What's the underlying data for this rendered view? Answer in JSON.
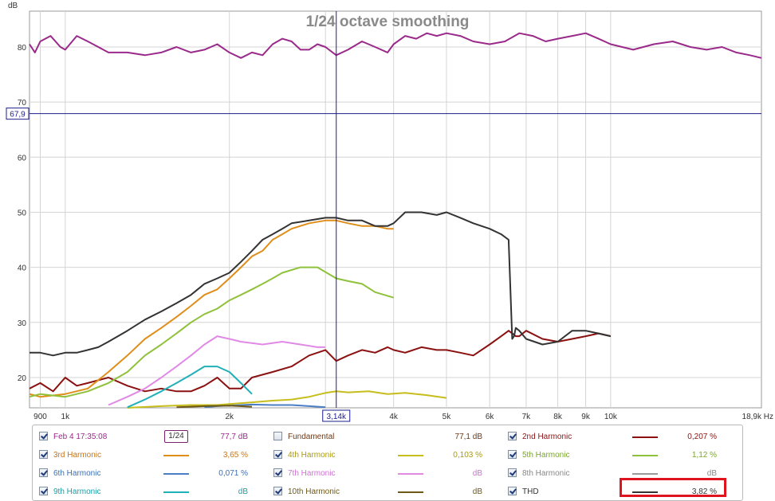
{
  "chart_data": {
    "type": "line",
    "title": "1/24 octave smoothing",
    "ylabel": "dB",
    "xunit": "Hz",
    "xscale": "log",
    "xlim": [
      860,
      18900
    ],
    "ylim": [
      14.5,
      86.5
    ],
    "yticks": [
      20,
      30,
      40,
      50,
      60,
      70,
      80
    ],
    "xticks": [
      {
        "v": 900,
        "label": "900"
      },
      {
        "v": 1000,
        "label": "1k"
      },
      {
        "v": 2000,
        "label": "2k"
      },
      {
        "v": 4000,
        "label": "4k"
      },
      {
        "v": 5000,
        "label": "5k"
      },
      {
        "v": 6000,
        "label": "6k"
      },
      {
        "v": 7000,
        "label": "7k"
      },
      {
        "v": 8000,
        "label": "8k"
      },
      {
        "v": 9000,
        "label": "9k"
      },
      {
        "v": 10000,
        "label": "10k"
      },
      {
        "v": 18900,
        "label": "18,9k Hz"
      }
    ],
    "cursor": {
      "x_label": "3,14k",
      "x": 3140,
      "y_label": "67,9",
      "y": 67.9
    },
    "grid": true,
    "series": [
      {
        "name": "Feb 4 17:35:08",
        "color": "#9a2a8a",
        "x": [
          860,
          880,
          900,
          940,
          980,
          1000,
          1050,
          1100,
          1150,
          1200,
          1300,
          1400,
          1500,
          1600,
          1700,
          1800,
          1900,
          2000,
          2100,
          2200,
          2300,
          2400,
          2500,
          2600,
          2700,
          2800,
          2900,
          3000,
          3140,
          3300,
          3500,
          3700,
          3900,
          4000,
          4200,
          4400,
          4600,
          4800,
          5000,
          5300,
          5600,
          6000,
          6400,
          6800,
          7200,
          7600,
          8000,
          8500,
          9000,
          9500,
          10000,
          11000,
          12000,
          13000,
          14000,
          15000,
          16000,
          17000,
          18000,
          18900
        ],
        "y": [
          80.5,
          79,
          81,
          82,
          80,
          79.5,
          82,
          81,
          80,
          79,
          79,
          78.5,
          79,
          80,
          79,
          79.5,
          80.5,
          79,
          78,
          79,
          78.5,
          80.5,
          81.5,
          81,
          79.5,
          79.5,
          80.5,
          80,
          78.5,
          79.5,
          81,
          80,
          79,
          80.5,
          82,
          81.5,
          82.5,
          82,
          82.5,
          82,
          81,
          80.5,
          81,
          82.5,
          82,
          81,
          81.5,
          82,
          82.5,
          81.5,
          80.5,
          79.5,
          80.5,
          81,
          80,
          79.5,
          80,
          79,
          78.5,
          78
        ]
      },
      {
        "name": "2nd Harmonic",
        "color": "#8b1111",
        "x": [
          860,
          900,
          950,
          1000,
          1050,
          1100,
          1200,
          1300,
          1400,
          1500,
          1600,
          1700,
          1800,
          1900,
          2000,
          2100,
          2200,
          2400,
          2600,
          2800,
          3000,
          3140,
          3300,
          3500,
          3700,
          3900,
          4000,
          4200,
          4500,
          4800,
          5000,
          5300,
          5600,
          6000,
          6300,
          6500,
          6700,
          6800,
          7000,
          7500,
          8000,
          8500,
          9000,
          9500,
          10000
        ],
        "y": [
          18,
          19,
          17.5,
          20,
          18.5,
          19,
          20,
          18.5,
          17.5,
          18,
          17.5,
          17.5,
          18.5,
          20,
          18,
          18,
          20,
          21,
          22,
          24,
          25,
          23,
          24,
          25,
          24.5,
          25.5,
          25,
          24.5,
          25.5,
          25,
          25,
          24.5,
          24,
          26,
          27.5,
          28.5,
          27.5,
          27.5,
          28.5,
          27,
          26.5,
          27,
          27.5,
          28,
          27.5
        ]
      },
      {
        "name": "3rd Harmonic",
        "color": "#e08e1a",
        "x": [
          860,
          900,
          1000,
          1100,
          1200,
          1300,
          1400,
          1500,
          1600,
          1700,
          1800,
          1900,
          2000,
          2100,
          2200,
          2300,
          2400,
          2500,
          2600,
          2800,
          3000,
          3140,
          3300,
          3500,
          3700,
          3900,
          4000
        ],
        "y": [
          17,
          16.5,
          17,
          18,
          21,
          24,
          27,
          29,
          31,
          33,
          35,
          36,
          38,
          40,
          42,
          43,
          45,
          46,
          47,
          48,
          48.5,
          48.5,
          48,
          47.5,
          47.5,
          47,
          47
        ]
      },
      {
        "name": "4th Harmonic",
        "color": "#c7bd1b",
        "x": [
          1300,
          1500,
          1700,
          1900,
          2000,
          2200,
          2400,
          2600,
          2800,
          3000,
          3140,
          3300,
          3600,
          3900,
          4200,
          4600,
          5000
        ],
        "y": [
          14.5,
          14.8,
          15,
          15,
          15.2,
          15.5,
          15.8,
          16,
          16.5,
          17.2,
          17.5,
          17.3,
          17.5,
          17,
          17.2,
          16.8,
          16.3
        ]
      },
      {
        "name": "5th Harmonic",
        "color": "#8fc13a",
        "x": [
          860,
          900,
          1000,
          1100,
          1200,
          1300,
          1400,
          1500,
          1600,
          1700,
          1800,
          1900,
          2000,
          2100,
          2200,
          2300,
          2400,
          2500,
          2700,
          2900,
          3140,
          3300,
          3500,
          3700,
          4000
        ],
        "y": [
          16.5,
          17,
          16.5,
          17.5,
          19,
          21,
          24,
          26,
          28,
          30,
          31.5,
          32.5,
          34,
          35,
          36,
          37,
          38,
          39,
          40,
          40,
          38,
          37.5,
          37,
          35.5,
          34.5
        ]
      },
      {
        "name": "6th Harmonic",
        "color": "#4a7fc6",
        "x": [
          1800,
          1900,
          2000,
          2200,
          2400,
          2600,
          2800,
          3000
        ],
        "y": [
          14.6,
          14.8,
          14.9,
          15.1,
          15,
          15,
          14.8,
          14.6
        ]
      },
      {
        "name": "7th Harmonic",
        "color": "#e08ae6",
        "x": [
          1200,
          1300,
          1400,
          1500,
          1600,
          1700,
          1800,
          1900,
          2000,
          2100,
          2300,
          2500,
          2700,
          2900,
          3000
        ],
        "y": [
          15,
          16.5,
          18,
          20,
          22,
          24,
          26,
          27.5,
          27,
          26.5,
          26,
          26.5,
          26,
          25.5,
          25.5
        ]
      },
      {
        "name": "8th Harmonic",
        "color": "#8a8a8a",
        "x": [],
        "y": []
      },
      {
        "name": "9th Harmonic",
        "color": "#21b0b8",
        "x": [
          1300,
          1400,
          1500,
          1600,
          1700,
          1800,
          1900,
          2000,
          2100,
          2200
        ],
        "y": [
          14.6,
          16,
          17.5,
          19,
          20.5,
          22,
          22,
          21,
          19,
          17
        ]
      },
      {
        "name": "10th Harmonic",
        "color": "#6e5a16",
        "x": [
          1600,
          1800,
          2000,
          2200
        ],
        "y": [
          14.6,
          14.8,
          14.9,
          14.7
        ]
      },
      {
        "name": "THD",
        "color": "#333333",
        "x": [
          860,
          900,
          950,
          1000,
          1050,
          1100,
          1150,
          1200,
          1300,
          1400,
          1500,
          1600,
          1700,
          1800,
          1900,
          2000,
          2100,
          2200,
          2300,
          2400,
          2500,
          2600,
          2800,
          3000,
          3140,
          3300,
          3500,
          3700,
          3900,
          4000,
          4200,
          4500,
          4800,
          5000,
          5300,
          5600,
          6000,
          6300,
          6500,
          6600,
          6650,
          6700,
          6800,
          7000,
          7500,
          8000,
          8500,
          9000,
          9500,
          10000
        ],
        "y": [
          24.5,
          24.5,
          24,
          24.5,
          24.5,
          25,
          25.5,
          26.5,
          28.5,
          30.5,
          32,
          33.5,
          35,
          37,
          38,
          39,
          41,
          43,
          45,
          46,
          47,
          48,
          48.5,
          49,
          49,
          48.5,
          48.5,
          47.5,
          47.5,
          48,
          50,
          50,
          49.5,
          50,
          49,
          48,
          47,
          46,
          45,
          27,
          27.5,
          29,
          28.5,
          27,
          26,
          26.5,
          28.5,
          28.5,
          28,
          27.5
        ]
      }
    ]
  },
  "legend": {
    "rows": [
      [
        {
          "checked": true,
          "name": "Feb 4 17:35:08",
          "name_color": "#9a2a8a",
          "badge": "1/24",
          "value": "77,7 dB",
          "swatch": ""
        },
        {
          "checked": false,
          "name": "Fundamental",
          "name_color": "#6b3a1a",
          "value": "77,1 dB",
          "swatch": ""
        },
        {
          "checked": true,
          "name": "2nd Harmonic",
          "name_color": "#8b1111",
          "value": "0,207 %",
          "swatch": "#8b1111"
        }
      ],
      [
        {
          "checked": true,
          "name": "3rd Harmonic",
          "name_color": "#c7741a",
          "value": "3,65 %",
          "swatch": "#e08e1a"
        },
        {
          "checked": true,
          "name": "4th Harmonic",
          "name_color": "#a89a10",
          "value": "0,103 %",
          "swatch": "#c7bd1b"
        },
        {
          "checked": true,
          "name": "5th Harmonic",
          "name_color": "#7aa52a",
          "value": "1,12 %",
          "swatch": "#8fc13a"
        }
      ],
      [
        {
          "checked": true,
          "name": "6th Harmonic",
          "name_color": "#3a6fb6",
          "value": "0,071 %",
          "swatch": "#4a7fc6"
        },
        {
          "checked": true,
          "name": "7th Harmonic",
          "name_color": "#d070d6",
          "value": "dB",
          "swatch": "#e08ae6"
        },
        {
          "checked": true,
          "name": "8th Harmonic",
          "name_color": "#888888",
          "value": "dB",
          "swatch": "#9a9a9a"
        }
      ],
      [
        {
          "checked": true,
          "name": "9th Harmonic",
          "name_color": "#1a9ea6",
          "value": "dB",
          "swatch": "#21b0b8"
        },
        {
          "checked": true,
          "name": "10th Harmonic",
          "name_color": "#6e5a16",
          "value": "dB",
          "swatch": "#6e5a16"
        },
        {
          "checked": true,
          "name": "THD",
          "name_color": "#333333",
          "value": "3,82 %",
          "swatch": "#333333"
        }
      ]
    ]
  }
}
